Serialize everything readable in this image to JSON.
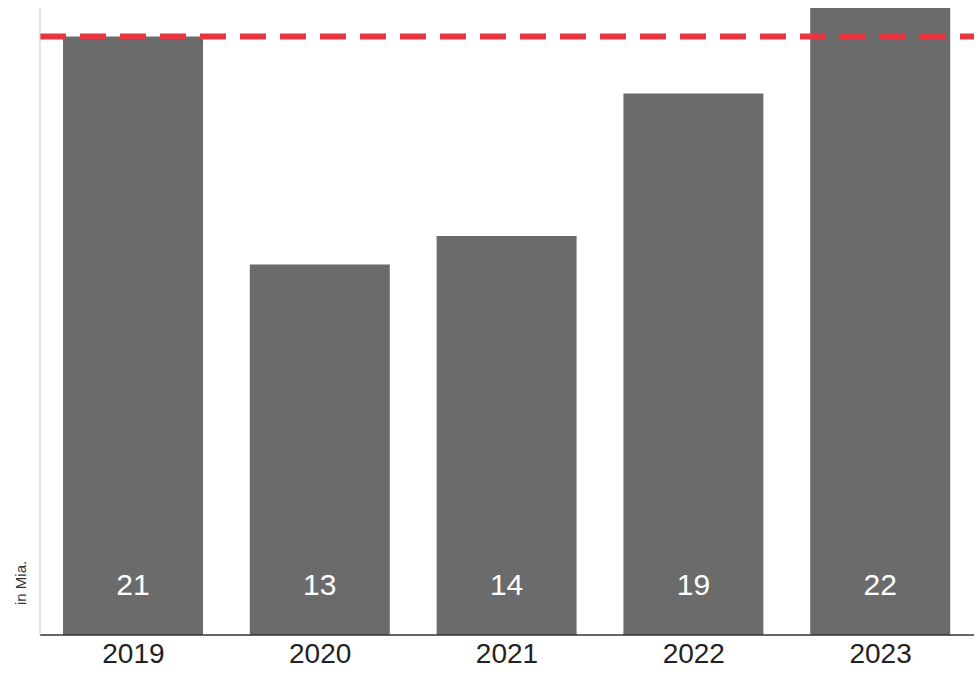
{
  "chart_data": {
    "type": "bar",
    "categories": [
      "2019",
      "2020",
      "2021",
      "2022",
      "2023"
    ],
    "values": [
      21,
      13,
      14,
      19,
      22
    ],
    "color": "#6b6b6b",
    "ylabel": "in Mia.",
    "ylim": [
      0,
      22
    ],
    "reference_line": 21,
    "data_labels": true,
    "tick_labels": "x",
    "grid": false
  }
}
